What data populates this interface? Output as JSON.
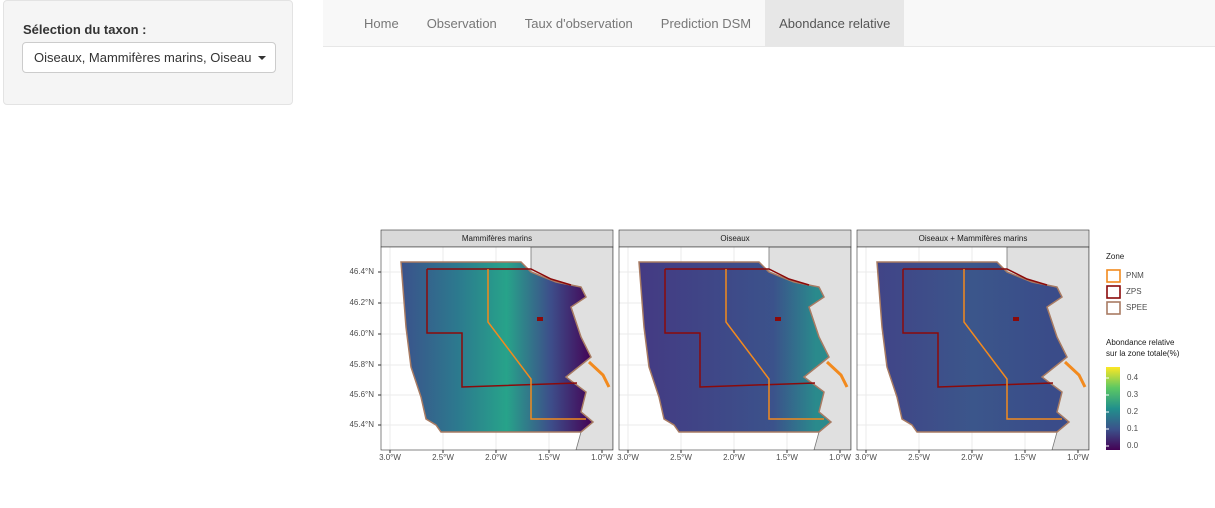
{
  "sidebar": {
    "label": "Sélection du taxon :",
    "select": "Oiseaux, Mammifères marins, Oiseau"
  },
  "navbar": {
    "tabs": [
      "Home",
      "Observation",
      "Taux d'observation",
      "Prediction DSM",
      "Abondance relative"
    ],
    "active": 4
  },
  "figure": {
    "panels": [
      "Mammifères marins",
      "Oiseaux",
      "Oiseaux + Mammifères marins"
    ],
    "yticks": [
      "46.4°N",
      "46.2°N",
      "46.0°N",
      "45.8°N",
      "45.6°N",
      "45.4°N"
    ],
    "xticks": [
      "3.0°W",
      "2.5°W",
      "2.0°W",
      "1.5°W",
      "1.0°W"
    ],
    "legend": {
      "zone_title": "Zone",
      "zones": [
        {
          "name": "PNM",
          "color": "#f28a1e"
        },
        {
          "name": "ZPS",
          "color": "#8b0a0a"
        },
        {
          "name": "SPEE",
          "color": "#a87b63"
        }
      ],
      "fill_title": [
        "Abondance relative",
        "sur la zone totale(%)"
      ],
      "fill_ticks": [
        "0.4",
        "0.3",
        "0.2",
        "0.1",
        "0.0"
      ]
    }
  }
}
